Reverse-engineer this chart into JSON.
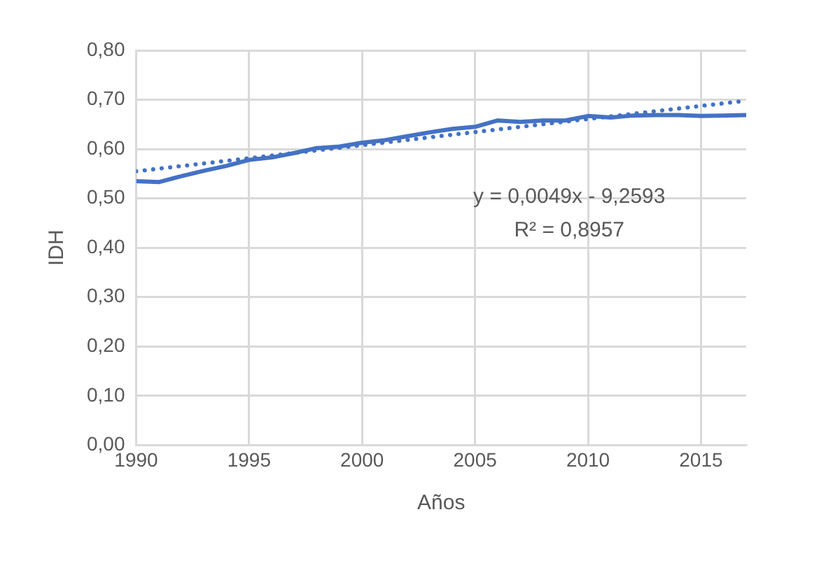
{
  "chart_data": {
    "type": "line",
    "xlabel": "Años",
    "ylabel": "IDH",
    "x": [
      1990,
      1991,
      1992,
      1993,
      1994,
      1995,
      1996,
      1997,
      1998,
      1999,
      2000,
      2001,
      2002,
      2003,
      2004,
      2005,
      2006,
      2007,
      2008,
      2009,
      2010,
      2011,
      2012,
      2013,
      2014,
      2015,
      2016,
      2017
    ],
    "series": [
      {
        "color": "#4472c4",
        "values": [
          0.535,
          0.533,
          0.545,
          0.556,
          0.566,
          0.578,
          0.583,
          0.592,
          0.602,
          0.605,
          0.613,
          0.618,
          0.626,
          0.634,
          0.641,
          0.645,
          0.658,
          0.655,
          0.658,
          0.658,
          0.667,
          0.664,
          0.668,
          0.669,
          0.669,
          0.667,
          0.668,
          0.669
        ]
      },
      {
        "type": "line",
        "color": "#4472c4",
        "line_style": "dotted",
        "x": [
          1990,
          2017
        ],
        "values": [
          0.555,
          0.698
        ]
      }
    ],
    "xlim": [
      1990,
      2017
    ],
    "xticks": [
      1990,
      1995,
      2000,
      2005,
      2010,
      2015
    ],
    "ylim": [
      0,
      0.8
    ],
    "yticks": [
      {
        "value": 0,
        "label": "0,00"
      },
      {
        "value": 0.1,
        "label": "0,10"
      },
      {
        "value": 0.2,
        "label": "0,20"
      },
      {
        "value": 0.3,
        "label": "0,30"
      },
      {
        "value": 0.4,
        "label": "0,40"
      },
      {
        "value": 0.5,
        "label": "0,50"
      },
      {
        "value": 0.6,
        "label": "0,60"
      },
      {
        "value": 0.7,
        "label": "0,70"
      },
      {
        "value": 0.8,
        "label": "0,80"
      }
    ],
    "grid": true,
    "line_style": "solid",
    "marker": "none",
    "annotations": [
      "y = 0,0049x - 9,2593",
      "R² = 0,8957"
    ]
  }
}
